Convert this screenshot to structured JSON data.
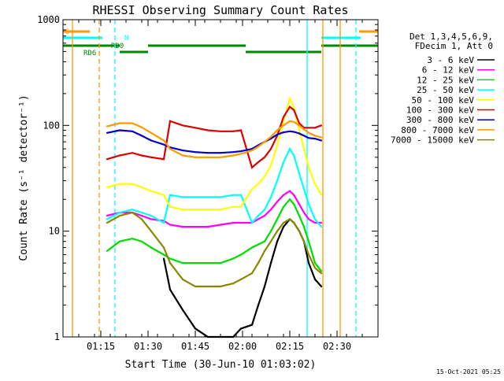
{
  "chart_data": {
    "type": "line",
    "title": "RHESSI Observing Summary Count Rates",
    "xlabel": "Start Time (30-Jun-10 01:03:02)",
    "ylabel": "Count Rate (s⁻¹ detector⁻¹)",
    "yscale": "log",
    "ylim": [
      1,
      1000
    ],
    "xlim_minutes_after_start": [
      0,
      100
    ],
    "xtick_labels": [
      "01:15",
      "01:30",
      "01:45",
      "02:00",
      "02:15",
      "02:30"
    ],
    "ytick_labels": [
      "1",
      "10",
      "100",
      "1000"
    ],
    "timestamp": "15-Oct-2021 05:25",
    "legend_header": [
      "Det 1,3,4,5,6,9,",
      "FDecim 1, Att 0"
    ],
    "legend_placement": "right",
    "series": [
      {
        "name": "3 - 6 keV",
        "color": "#000000",
        "x": [
          14,
          18,
          22,
          25,
          28,
          32,
          34,
          38,
          42,
          46,
          50,
          54,
          56.5,
          60,
          62,
          64,
          66,
          68,
          70,
          72,
          73.3,
          75,
          76.5,
          78,
          80,
          82
        ],
        "values": [
          null,
          null,
          null,
          null,
          null,
          5.5,
          2.8,
          1.8,
          1.2,
          1.0,
          1.0,
          1.0,
          1.2,
          1.3,
          2,
          3,
          5,
          8,
          11,
          13,
          12,
          10,
          8,
          5,
          3.5,
          3
        ]
      },
      {
        "name": "6 - 12 keV",
        "color": "#ff00ff",
        "x": [
          14,
          18,
          22,
          25,
          28,
          32,
          34,
          38,
          42,
          46,
          50,
          54,
          56.5,
          60,
          62,
          64,
          66,
          68,
          70,
          72,
          73.3,
          75,
          76.5,
          78,
          80,
          82
        ],
        "values": [
          14,
          15,
          15,
          14,
          13,
          12.5,
          11.5,
          11,
          11,
          11,
          11.5,
          12,
          12,
          12,
          13,
          14,
          16,
          19,
          22,
          24,
          22,
          18,
          15,
          13,
          12,
          12
        ]
      },
      {
        "name": "12 - 25 keV",
        "color": "#00dd00",
        "x": [
          14,
          18,
          22,
          25,
          28,
          32,
          34,
          38,
          42,
          46,
          50,
          54,
          56.5,
          60,
          62,
          64,
          66,
          68,
          70,
          72,
          73.3,
          75,
          76.5,
          78,
          80,
          82
        ],
        "values": [
          6.5,
          8,
          8.5,
          8,
          7,
          6,
          5.5,
          5,
          5,
          5,
          5,
          5.5,
          6,
          7,
          7.5,
          8,
          10,
          13,
          17,
          20,
          18,
          14,
          11,
          8,
          5,
          4.2
        ]
      },
      {
        "name": "25 - 50 keV",
        "color": "#00ffff",
        "x": [
          14,
          18,
          22,
          25,
          28,
          32,
          34,
          38,
          42,
          46,
          50,
          54,
          56.5,
          60,
          62,
          64,
          66,
          68,
          70,
          72,
          73.3,
          75,
          76.5,
          78,
          80,
          82
        ],
        "values": [
          13,
          15,
          16,
          15,
          14,
          12,
          22,
          21,
          21,
          21,
          21,
          22,
          22,
          12,
          14,
          16,
          21,
          30,
          45,
          60,
          52,
          35,
          25,
          18,
          13,
          11
        ]
      },
      {
        "name": "50 - 100 keV",
        "color": "#ffff00",
        "x": [
          14,
          18,
          22,
          25,
          28,
          32,
          34,
          38,
          42,
          46,
          50,
          54,
          56.5,
          60,
          62,
          64,
          66,
          68,
          70,
          72,
          73.3,
          75,
          76.5,
          78,
          80,
          82
        ],
        "values": [
          26,
          28,
          28,
          26,
          24,
          22,
          17,
          16,
          16,
          16,
          16,
          17,
          17,
          25,
          28,
          33,
          42,
          65,
          110,
          180,
          150,
          90,
          60,
          40,
          28,
          22
        ]
      },
      {
        "name": "100 - 300 keV",
        "color": "#dd0000",
        "x": [
          14,
          18,
          22,
          25,
          28,
          32,
          34,
          38,
          42,
          46,
          50,
          54,
          56.5,
          60,
          62,
          64,
          66,
          68,
          70,
          72,
          73.3,
          75,
          76.5,
          78,
          80,
          82
        ],
        "values": [
          48,
          52,
          55,
          52,
          50,
          48,
          110,
          100,
          95,
          90,
          88,
          88,
          90,
          40,
          45,
          50,
          60,
          80,
          120,
          150,
          140,
          105,
          95,
          95,
          95,
          100
        ]
      },
      {
        "name": "300 - 800 keV",
        "color": "#0000cc",
        "x": [
          14,
          18,
          22,
          25,
          28,
          32,
          34,
          38,
          42,
          46,
          50,
          54,
          56.5,
          60,
          62,
          64,
          66,
          68,
          70,
          72,
          73.3,
          75,
          76.5,
          78,
          80,
          82
        ],
        "values": [
          85,
          90,
          88,
          80,
          72,
          66,
          62,
          58,
          56,
          55,
          55,
          56,
          57,
          60,
          65,
          70,
          75,
          82,
          86,
          88,
          87,
          84,
          80,
          76,
          75,
          72
        ]
      },
      {
        "name": "800 - 7000 keV",
        "color": "#ff9900",
        "x": [
          14,
          18,
          22,
          25,
          28,
          32,
          34,
          38,
          42,
          46,
          50,
          54,
          56.5,
          60,
          62,
          64,
          66,
          68,
          70,
          72,
          73.3,
          75,
          76.5,
          78,
          80,
          82
        ],
        "values": [
          98,
          105,
          105,
          96,
          85,
          72,
          60,
          52,
          50,
          50,
          50,
          52,
          54,
          58,
          63,
          70,
          78,
          90,
          100,
          110,
          108,
          100,
          92,
          85,
          80,
          77
        ]
      },
      {
        "name": "7000 - 15000 keV",
        "color": "#888800",
        "x": [
          14,
          18,
          22,
          25,
          28,
          32,
          34,
          38,
          42,
          46,
          50,
          54,
          56.5,
          60,
          62,
          64,
          66,
          68,
          70,
          72,
          73.3,
          75,
          76.5,
          78,
          80,
          82
        ],
        "values": [
          12,
          14,
          15,
          13,
          10,
          7,
          5,
          3.5,
          3,
          3,
          3,
          3.2,
          3.5,
          4,
          5,
          6.5,
          8,
          10,
          12,
          13,
          12,
          10,
          8,
          6,
          4.5,
          4
        ]
      }
    ],
    "state_bars": [
      {
        "label": "S",
        "color": "#ff9900",
        "intervals": [
          [
            0,
            8.5
          ],
          [
            94,
            100
          ]
        ]
      },
      {
        "label": "N",
        "color": "#00ffff",
        "intervals": [
          [
            0,
            12.5
          ],
          [
            82,
            94.5
          ]
        ]
      },
      {
        "label": "RD0",
        "color": "#008800",
        "intervals": [
          [
            27,
            35
          ]
        ]
      },
      {
        "label": "RD6",
        "color": "#008800",
        "intervals": [
          [
            0,
            18
          ],
          [
            18,
            27
          ],
          [
            35,
            58
          ],
          [
            58,
            82
          ],
          [
            82,
            100
          ]
        ]
      }
    ],
    "vertical_markers": [
      {
        "x": 3.0,
        "color": "#ff9900",
        "style": "solid"
      },
      {
        "x": 11.5,
        "color": "#ff9900",
        "style": "dashed"
      },
      {
        "x": 16.5,
        "color": "#00ffff",
        "style": "dashed"
      },
      {
        "x": 77.5,
        "color": "#00ffff",
        "style": "solid"
      },
      {
        "x": 82.5,
        "color": "#ff9900",
        "style": "solid"
      },
      {
        "x": 88.0,
        "color": "#ff9900",
        "style": "solid"
      },
      {
        "x": 93.0,
        "color": "#00ffff",
        "style": "dashed"
      }
    ]
  }
}
